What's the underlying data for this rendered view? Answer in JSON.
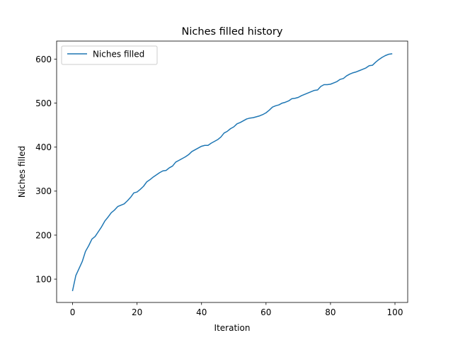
{
  "chart_data": {
    "type": "line",
    "title": "Niches filled history",
    "xlabel": "Iteration",
    "ylabel": "Niches filled",
    "xlim": [
      -4.95,
      103.95
    ],
    "ylim": [
      47.0,
      641.0
    ],
    "xticks": [
      0,
      20,
      40,
      60,
      80,
      100
    ],
    "yticks": [
      100,
      200,
      300,
      400,
      500,
      600
    ],
    "grid": false,
    "legend": "top-left",
    "series_color": "#1f77b4",
    "series": [
      {
        "name": "Niches filled",
        "x": [
          0,
          1,
          2,
          3,
          4,
          5,
          6,
          7,
          8,
          9,
          10,
          11,
          12,
          13,
          14,
          15,
          16,
          17,
          18,
          19,
          20,
          21,
          22,
          23,
          24,
          25,
          26,
          27,
          28,
          29,
          30,
          31,
          32,
          33,
          34,
          35,
          36,
          37,
          38,
          39,
          40,
          41,
          42,
          43,
          44,
          45,
          46,
          47,
          48,
          49,
          50,
          51,
          52,
          53,
          54,
          55,
          56,
          57,
          58,
          59,
          60,
          61,
          62,
          63,
          64,
          65,
          66,
          67,
          68,
          69,
          70,
          71,
          72,
          73,
          74,
          75,
          76,
          77,
          78,
          79,
          80,
          81,
          82,
          83,
          84,
          85,
          86,
          87,
          88,
          89,
          90,
          91,
          92,
          93,
          94,
          95,
          96,
          97,
          98,
          99
        ],
        "values": [
          74,
          108,
          124,
          140,
          163,
          176,
          191,
          197,
          208,
          219,
          232,
          241,
          251,
          257,
          265,
          268,
          271,
          278,
          286,
          296,
          298,
          304,
          311,
          321,
          326,
          332,
          337,
          342,
          346,
          347,
          353,
          357,
          366,
          370,
          374,
          378,
          383,
          390,
          394,
          398,
          402,
          404,
          404,
          409,
          413,
          417,
          423,
          432,
          436,
          442,
          446,
          453,
          456,
          460,
          464,
          466,
          467,
          469,
          471,
          474,
          478,
          484,
          491,
          494,
          496,
          500,
          502,
          505,
          510,
          511,
          513,
          517,
          520,
          523,
          526,
          529,
          530,
          538,
          542,
          542,
          543,
          546,
          549,
          554,
          556,
          562,
          566,
          569,
          571,
          574,
          577,
          580,
          585,
          586,
          593,
          599,
          604,
          608,
          611,
          612
        ]
      }
    ]
  }
}
